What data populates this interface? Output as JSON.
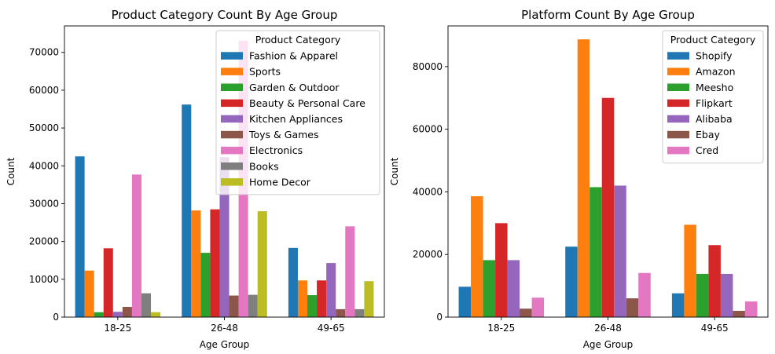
{
  "chart_data": [
    {
      "type": "bar",
      "title": "Product Category Count By Age Group",
      "xlabel": "Age Group",
      "ylabel": "Count",
      "categories": [
        "18-25",
        "26-48",
        "49-65"
      ],
      "ylim": [
        0,
        77000
      ],
      "yticks": [
        0,
        10000,
        20000,
        30000,
        40000,
        50000,
        60000,
        70000
      ],
      "legend_title": "Product Category",
      "legend_position": "top-right",
      "grid": false,
      "series": [
        {
          "name": "Fashion & Apparel",
          "color": "#1f77b4",
          "values": [
            42500,
            56200,
            18300
          ]
        },
        {
          "name": "Sports",
          "color": "#ff7f0e",
          "values": [
            12300,
            28200,
            9700
          ]
        },
        {
          "name": "Garden & Outdoor",
          "color": "#2ca02c",
          "values": [
            1300,
            17000,
            5800
          ]
        },
        {
          "name": "Beauty & Personal Care",
          "color": "#d62728",
          "values": [
            18200,
            28500,
            9700
          ]
        },
        {
          "name": "Kitchen Appliances",
          "color": "#9467bd",
          "values": [
            1400,
            42300,
            14300
          ]
        },
        {
          "name": "Toys & Games",
          "color": "#8c564b",
          "values": [
            2700,
            5700,
            2100
          ]
        },
        {
          "name": "Electronics",
          "color": "#e377c2",
          "values": [
            37700,
            73100,
            24000
          ]
        },
        {
          "name": "Books",
          "color": "#7f7f7f",
          "values": [
            6300,
            5900,
            2100
          ]
        },
        {
          "name": "Home Decor",
          "color": "#bcbd22",
          "values": [
            1300,
            28000,
            9500
          ]
        }
      ]
    },
    {
      "type": "bar",
      "title": "Platform Count By Age Group",
      "xlabel": "Age Group",
      "ylabel": "Count",
      "categories": [
        "18-25",
        "26-48",
        "49-65"
      ],
      "ylim": [
        0,
        93000
      ],
      "yticks": [
        0,
        20000,
        40000,
        60000,
        80000
      ],
      "legend_title": "Product Category",
      "legend_position": "top-right",
      "grid": false,
      "series": [
        {
          "name": "Shopify",
          "color": "#1f77b4",
          "values": [
            9700,
            22500,
            7600
          ]
        },
        {
          "name": "Amazon",
          "color": "#ff7f0e",
          "values": [
            38600,
            88700,
            29500
          ]
        },
        {
          "name": "Meesho",
          "color": "#2ca02c",
          "values": [
            18200,
            41500,
            13800
          ]
        },
        {
          "name": "Flipkart",
          "color": "#d62728",
          "values": [
            30000,
            70000,
            23000
          ]
        },
        {
          "name": "Alibaba",
          "color": "#9467bd",
          "values": [
            18200,
            42000,
            13800
          ]
        },
        {
          "name": "Ebay",
          "color": "#8c564b",
          "values": [
            2700,
            6000,
            2000
          ]
        },
        {
          "name": "Cred",
          "color": "#e377c2",
          "values": [
            6200,
            14100,
            5000
          ]
        }
      ]
    }
  ]
}
